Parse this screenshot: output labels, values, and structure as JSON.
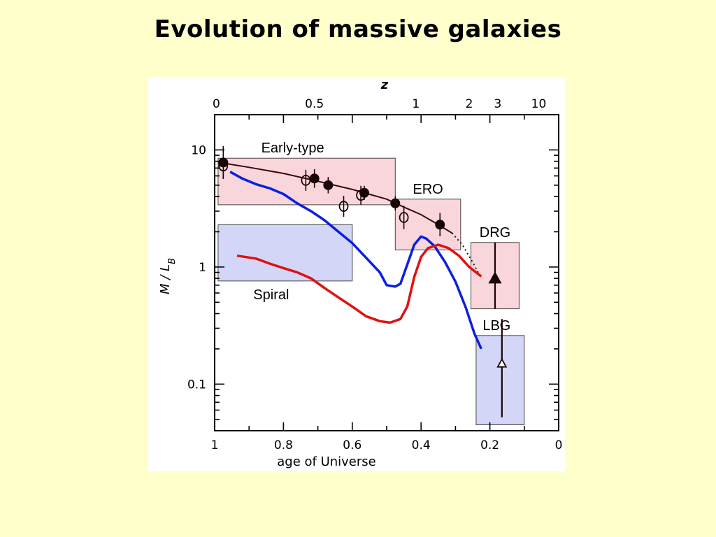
{
  "slide": {
    "title": "Evolution of massive galaxies"
  },
  "colors": {
    "background": "#ffffcc",
    "early_box": "#f9d6dc",
    "spiral_box": "#d4d6f8",
    "blue_curve": "#0a1fe0",
    "red_curve": "#e01010",
    "fit_line": "#3a0a0a",
    "points": "#1a0505"
  },
  "chart_data": {
    "type": "scatter",
    "title": "",
    "xlabel": "age of Universe",
    "x2label": "z",
    "ylabel": "M / L_B",
    "y_scale": "log",
    "xlim": [
      1,
      0
    ],
    "ylim": [
      0.04,
      20
    ],
    "x_ticks": [
      {
        "v": 1,
        "label": "1"
      },
      {
        "v": 0.8,
        "label": "0.8"
      },
      {
        "v": 0.6,
        "label": "0.6"
      },
      {
        "v": 0.4,
        "label": "0.4"
      },
      {
        "v": 0.2,
        "label": "0.2"
      },
      {
        "v": 0,
        "label": "0"
      }
    ],
    "y_ticks": [
      {
        "v": 10,
        "label": "10"
      },
      {
        "v": 1,
        "label": "1"
      },
      {
        "v": 0.1,
        "label": "0.1"
      }
    ],
    "z_ticks": [
      {
        "age": 0.995,
        "label": "0"
      },
      {
        "age": 0.71,
        "label": "0.5"
      },
      {
        "age": 0.415,
        "label": "1"
      },
      {
        "age": 0.26,
        "label": "2"
      },
      {
        "age": 0.177,
        "label": "3"
      },
      {
        "age": 0.058,
        "label": "10"
      }
    ],
    "regions": [
      {
        "name": "Early-type",
        "x0": 0.99,
        "x1": 0.475,
        "y0": 3.4,
        "y1": 8.5,
        "fill": "#f9d6dc"
      },
      {
        "name": "ERO",
        "x0": 0.475,
        "x1": 0.285,
        "y0": 1.4,
        "y1": 3.8,
        "fill": "#f9d6dc"
      },
      {
        "name": "DRG",
        "x0": 0.255,
        "x1": 0.115,
        "y0": 0.44,
        "y1": 1.62,
        "fill": "#f9d6dc"
      },
      {
        "name": "Spiral",
        "x0": 0.99,
        "x1": 0.6,
        "y0": 0.76,
        "y1": 2.3,
        "fill": "#d4d6f8"
      },
      {
        "name": "LBG",
        "x0": 0.24,
        "x1": 0.1,
        "y0": 0.045,
        "y1": 0.26,
        "fill": "#d4d6f8"
      }
    ],
    "series": [
      {
        "kind": "filled_points",
        "points": [
          {
            "x": 0.975,
            "y": 7.8,
            "err": 0.14
          },
          {
            "x": 0.71,
            "y": 5.7,
            "err": 0.08
          },
          {
            "x": 0.67,
            "y": 5.0,
            "err": 0.07
          },
          {
            "x": 0.565,
            "y": 4.3,
            "err": 0.06
          },
          {
            "x": 0.475,
            "y": 3.5,
            "err": 0.06
          },
          {
            "x": 0.345,
            "y": 2.3,
            "err": 0.1
          }
        ]
      },
      {
        "kind": "open_points",
        "points": [
          {
            "x": 0.975,
            "y": 7.3,
            "err": 0.1
          },
          {
            "x": 0.735,
            "y": 5.5,
            "err": 0.09
          },
          {
            "x": 0.575,
            "y": 4.1,
            "err": 0.08
          },
          {
            "x": 0.625,
            "y": 3.3,
            "err": 0.09
          },
          {
            "x": 0.45,
            "y": 2.65,
            "err": 0.1
          }
        ]
      },
      {
        "kind": "fit_line",
        "points": [
          {
            "x": 0.985,
            "y": 7.8
          },
          {
            "x": 0.9,
            "y": 7.1
          },
          {
            "x": 0.8,
            "y": 6.3
          },
          {
            "x": 0.7,
            "y": 5.4
          },
          {
            "x": 0.6,
            "y": 4.6
          },
          {
            "x": 0.5,
            "y": 3.8
          },
          {
            "x": 0.45,
            "y": 3.25
          },
          {
            "x": 0.4,
            "y": 2.8
          },
          {
            "x": 0.35,
            "y": 2.3
          },
          {
            "x": 0.31,
            "y": 1.95
          }
        ],
        "dotted": [
          {
            "x": 0.31,
            "y": 1.95
          },
          {
            "x": 0.28,
            "y": 1.55
          },
          {
            "x": 0.25,
            "y": 1.1
          },
          {
            "x": 0.225,
            "y": 0.8
          }
        ]
      },
      {
        "kind": "blue_curve",
        "points": [
          {
            "x": 0.955,
            "y": 6.5
          },
          {
            "x": 0.92,
            "y": 5.7
          },
          {
            "x": 0.88,
            "y": 5.1
          },
          {
            "x": 0.84,
            "y": 4.7
          },
          {
            "x": 0.8,
            "y": 4.2
          },
          {
            "x": 0.76,
            "y": 3.5
          },
          {
            "x": 0.72,
            "y": 3.0
          },
          {
            "x": 0.68,
            "y": 2.5
          },
          {
            "x": 0.64,
            "y": 2.0
          },
          {
            "x": 0.6,
            "y": 1.6
          },
          {
            "x": 0.56,
            "y": 1.2
          },
          {
            "x": 0.52,
            "y": 0.9
          },
          {
            "x": 0.5,
            "y": 0.7
          },
          {
            "x": 0.475,
            "y": 0.68
          },
          {
            "x": 0.46,
            "y": 0.72
          },
          {
            "x": 0.44,
            "y": 1.05
          },
          {
            "x": 0.42,
            "y": 1.55
          },
          {
            "x": 0.4,
            "y": 1.82
          },
          {
            "x": 0.385,
            "y": 1.75
          },
          {
            "x": 0.36,
            "y": 1.5
          },
          {
            "x": 0.33,
            "y": 1.1
          },
          {
            "x": 0.3,
            "y": 0.75
          },
          {
            "x": 0.27,
            "y": 0.45
          },
          {
            "x": 0.245,
            "y": 0.27
          },
          {
            "x": 0.225,
            "y": 0.2
          }
        ]
      },
      {
        "kind": "red_curve",
        "points": [
          {
            "x": 0.935,
            "y": 1.25
          },
          {
            "x": 0.88,
            "y": 1.18
          },
          {
            "x": 0.84,
            "y": 1.07
          },
          {
            "x": 0.8,
            "y": 0.98
          },
          {
            "x": 0.76,
            "y": 0.9
          },
          {
            "x": 0.72,
            "y": 0.8
          },
          {
            "x": 0.68,
            "y": 0.66
          },
          {
            "x": 0.64,
            "y": 0.55
          },
          {
            "x": 0.6,
            "y": 0.46
          },
          {
            "x": 0.56,
            "y": 0.38
          },
          {
            "x": 0.52,
            "y": 0.345
          },
          {
            "x": 0.49,
            "y": 0.335
          },
          {
            "x": 0.46,
            "y": 0.36
          },
          {
            "x": 0.44,
            "y": 0.46
          },
          {
            "x": 0.42,
            "y": 0.82
          },
          {
            "x": 0.4,
            "y": 1.22
          },
          {
            "x": 0.38,
            "y": 1.45
          },
          {
            "x": 0.35,
            "y": 1.55
          },
          {
            "x": 0.32,
            "y": 1.45
          },
          {
            "x": 0.29,
            "y": 1.25
          },
          {
            "x": 0.26,
            "y": 1.0
          },
          {
            "x": 0.225,
            "y": 0.83
          }
        ]
      },
      {
        "kind": "filled_triangle",
        "points": [
          {
            "x": 0.185,
            "y": 0.8,
            "ylow": 0.44,
            "yhigh": 1.62
          }
        ]
      },
      {
        "kind": "open_triangle",
        "points": [
          {
            "x": 0.165,
            "y": 0.15,
            "ylow": 0.052,
            "yhigh": 0.36
          }
        ]
      }
    ]
  }
}
